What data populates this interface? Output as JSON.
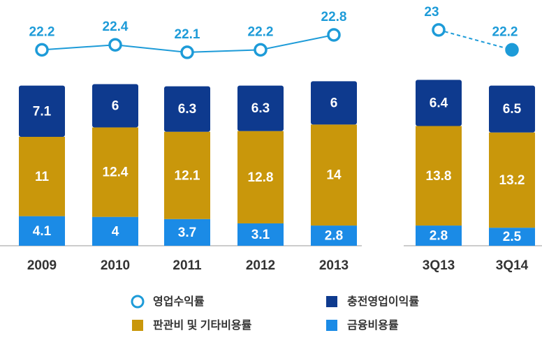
{
  "chart_data": {
    "type": "bar",
    "categories": [
      "2009",
      "2010",
      "2011",
      "2012",
      "2013",
      "3Q13",
      "3Q14"
    ],
    "series": [
      {
        "name": "금융비용률",
        "color": "#1b8be6",
        "values": [
          4.1,
          4.0,
          3.7,
          3.1,
          2.8,
          2.8,
          2.5
        ]
      },
      {
        "name": "판관비 및 기타비용률",
        "color": "#c9970b",
        "values": [
          11.0,
          12.4,
          12.1,
          12.8,
          14.0,
          13.8,
          13.2
        ]
      },
      {
        "name": "충전영업이익률",
        "color": "#0e3a8e",
        "values": [
          7.1,
          6.0,
          6.3,
          6.3,
          6.0,
          6.4,
          6.5
        ]
      },
      {
        "name": "영업수익률",
        "color": "#1d9bd8",
        "type": "line",
        "axis": "y2",
        "values": [
          22.2,
          22.4,
          22.1,
          22.2,
          22.8,
          23.0,
          22.2
        ]
      }
    ],
    "ylim": [
      0,
      33
    ],
    "y2lim": [
      20.5,
      23.5
    ]
  }
}
